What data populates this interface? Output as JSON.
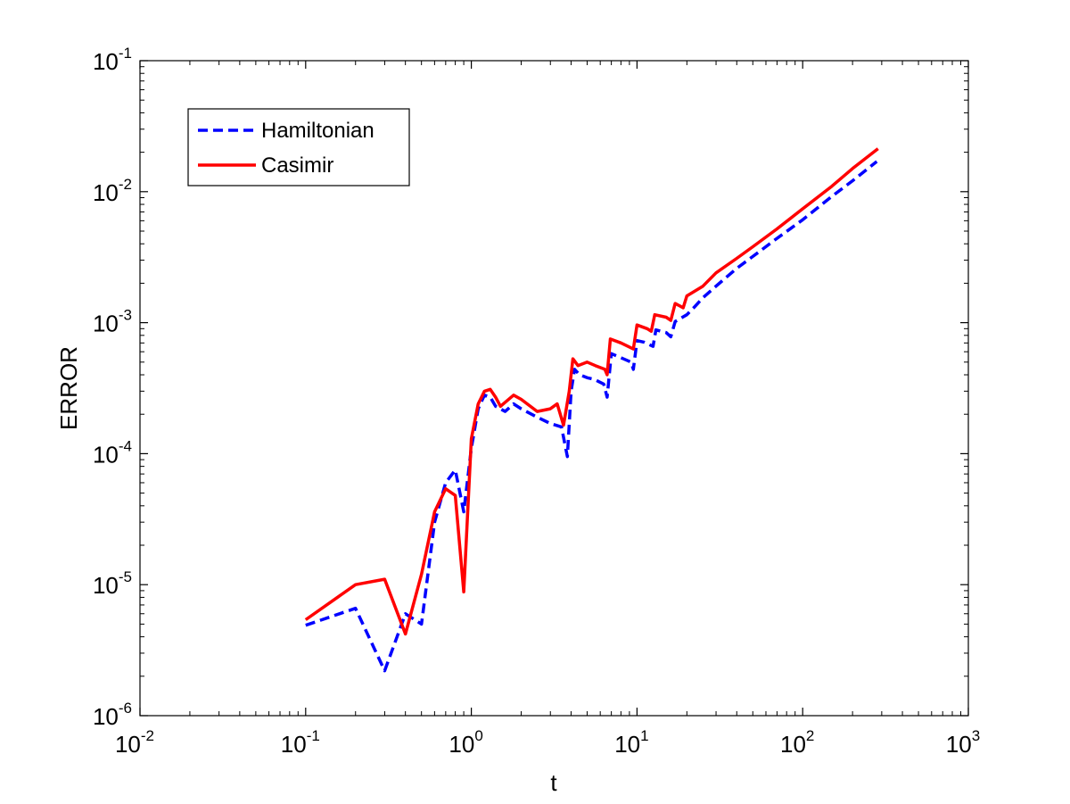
{
  "chart_data": {
    "type": "line",
    "title": "",
    "xlabel": "t",
    "ylabel": "ERROR",
    "xscale": "log",
    "yscale": "log",
    "xlim": [
      0.01,
      1000
    ],
    "ylim": [
      1e-06,
      0.1
    ],
    "grid": false,
    "legend_position": "top-left",
    "x_ticks": [
      {
        "value": 0.01,
        "base": "10",
        "exp": "-2"
      },
      {
        "value": 0.1,
        "base": "10",
        "exp": "-1"
      },
      {
        "value": 1,
        "base": "10",
        "exp": "0"
      },
      {
        "value": 10,
        "base": "10",
        "exp": "1"
      },
      {
        "value": 100,
        "base": "10",
        "exp": "2"
      },
      {
        "value": 1000,
        "base": "10",
        "exp": "3"
      }
    ],
    "y_ticks": [
      {
        "value": 1e-06,
        "base": "10",
        "exp": "-6"
      },
      {
        "value": 1e-05,
        "base": "10",
        "exp": "-5"
      },
      {
        "value": 0.0001,
        "base": "10",
        "exp": "-4"
      },
      {
        "value": 0.001,
        "base": "10",
        "exp": "-3"
      },
      {
        "value": 0.01,
        "base": "10",
        "exp": "-2"
      },
      {
        "value": 0.1,
        "base": "10",
        "exp": "-1"
      }
    ],
    "series": [
      {
        "name": "Hamiltonian",
        "color": "#0000ff",
        "style": "dashed",
        "points": [
          [
            0.1,
            4.9e-06
          ],
          [
            0.2,
            6.6e-06
          ],
          [
            0.3,
            2.2e-06
          ],
          [
            0.4,
            6e-06
          ],
          [
            0.5,
            5e-06
          ],
          [
            0.6,
            3e-05
          ],
          [
            0.7,
            6e-05
          ],
          [
            0.8,
            7.5e-05
          ],
          [
            0.9,
            3.6e-05
          ],
          [
            1.0,
            0.00011
          ],
          [
            1.1,
            0.00022
          ],
          [
            1.2,
            0.00028
          ],
          [
            1.3,
            0.00027
          ],
          [
            1.4,
            0.00023
          ],
          [
            1.6,
            0.00021
          ],
          [
            1.8,
            0.00024
          ],
          [
            2.0,
            0.00022
          ],
          [
            2.5,
            0.00019
          ],
          [
            3.0,
            0.00017
          ],
          [
            3.5,
            0.00016
          ],
          [
            3.8,
            9.5e-05
          ],
          [
            4.0,
            0.0003
          ],
          [
            4.2,
            0.00044
          ],
          [
            4.5,
            0.0004
          ],
          [
            5.0,
            0.00038
          ],
          [
            5.5,
            0.00037
          ],
          [
            6.3,
            0.00034
          ],
          [
            6.6,
            0.00027
          ],
          [
            7.0,
            0.00058
          ],
          [
            8.0,
            0.00054
          ],
          [
            9.2,
            0.0005
          ],
          [
            9.5,
            0.00044
          ],
          [
            10,
            0.00073
          ],
          [
            11,
            0.00071
          ],
          [
            12.5,
            0.00066
          ],
          [
            13,
            0.00088
          ],
          [
            15,
            0.00084
          ],
          [
            16,
            0.00078
          ],
          [
            17,
            0.00102
          ],
          [
            20,
            0.00115
          ],
          [
            22,
            0.0013
          ],
          [
            25,
            0.00155
          ],
          [
            30,
            0.0019
          ],
          [
            40,
            0.0026
          ],
          [
            50,
            0.0032
          ],
          [
            70,
            0.0044
          ],
          [
            100,
            0.0061
          ],
          [
            150,
            0.0092
          ],
          [
            200,
            0.0121
          ],
          [
            280,
            0.017
          ]
        ]
      },
      {
        "name": "Casimir",
        "color": "#ff0000",
        "style": "solid",
        "points": [
          [
            0.1,
            5.4e-06
          ],
          [
            0.2,
            1e-05
          ],
          [
            0.3,
            1.1e-05
          ],
          [
            0.4,
            4.2e-06
          ],
          [
            0.5,
            1.2e-05
          ],
          [
            0.6,
            3.6e-05
          ],
          [
            0.7,
            5.4e-05
          ],
          [
            0.8,
            4.8e-05
          ],
          [
            0.9,
            8.8e-06
          ],
          [
            1.0,
            0.00013
          ],
          [
            1.1,
            0.00024
          ],
          [
            1.2,
            0.0003
          ],
          [
            1.3,
            0.00031
          ],
          [
            1.4,
            0.00027
          ],
          [
            1.5,
            0.00023
          ],
          [
            1.8,
            0.00028
          ],
          [
            2.0,
            0.00026
          ],
          [
            2.5,
            0.00021
          ],
          [
            3.0,
            0.00022
          ],
          [
            3.3,
            0.00024
          ],
          [
            3.6,
            0.000165
          ],
          [
            3.9,
            0.0003
          ],
          [
            4.1,
            0.00053
          ],
          [
            4.4,
            0.00047
          ],
          [
            5.0,
            0.0005
          ],
          [
            5.6,
            0.00047
          ],
          [
            6.4,
            0.00044
          ],
          [
            6.6,
            0.0004
          ],
          [
            6.9,
            0.00075
          ],
          [
            8.0,
            0.0007
          ],
          [
            9.5,
            0.00063
          ],
          [
            10,
            0.00096
          ],
          [
            11.5,
            0.0009
          ],
          [
            12.2,
            0.00086
          ],
          [
            12.8,
            0.00115
          ],
          [
            15,
            0.0011
          ],
          [
            16,
            0.00104
          ],
          [
            17,
            0.0014
          ],
          [
            19,
            0.0013
          ],
          [
            20,
            0.0016
          ],
          [
            25,
            0.0019
          ],
          [
            30,
            0.0024
          ],
          [
            40,
            0.0031
          ],
          [
            50,
            0.0038
          ],
          [
            70,
            0.0052
          ],
          [
            100,
            0.0074
          ],
          [
            150,
            0.011
          ],
          [
            200,
            0.015
          ],
          [
            285,
            0.0213
          ]
        ]
      }
    ]
  }
}
